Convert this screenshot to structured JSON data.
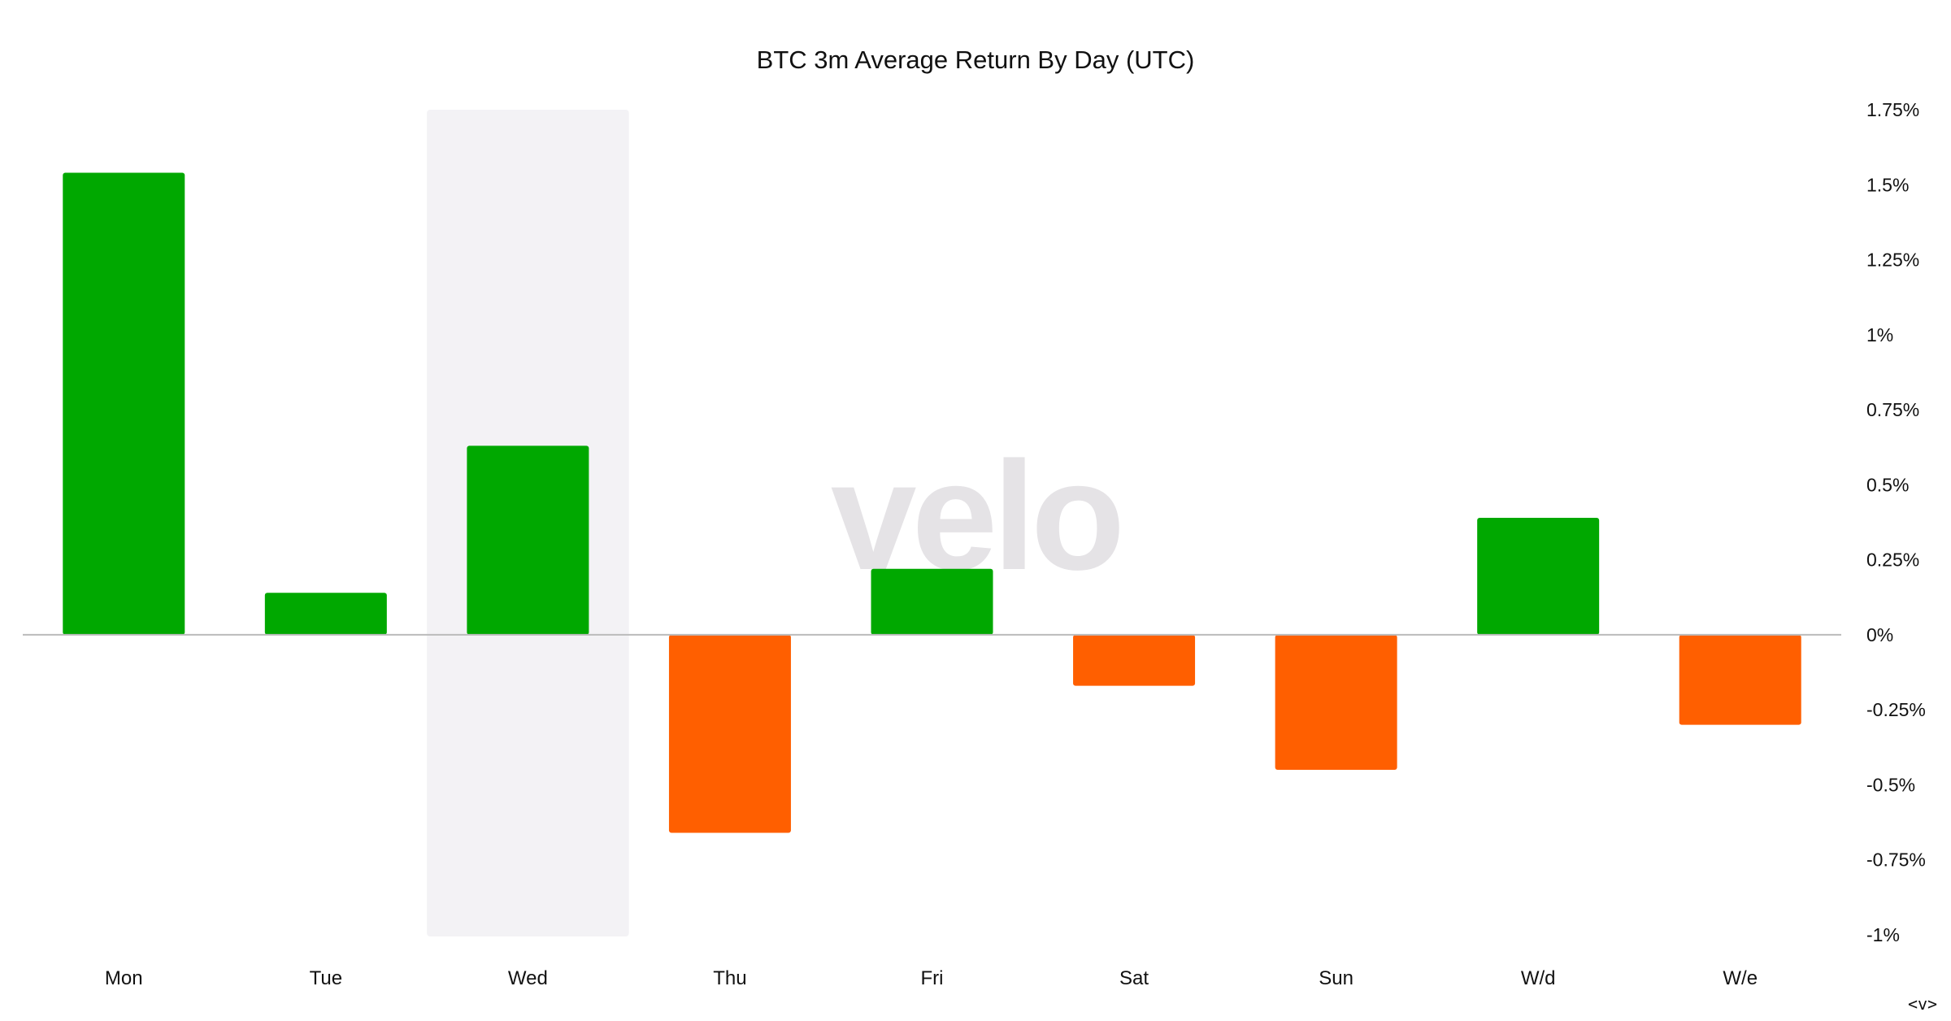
{
  "chart_data": {
    "type": "bar",
    "title": "BTC 3m Average Return By Day (UTC)",
    "xlabel": "",
    "ylabel": "",
    "categories": [
      "Mon",
      "Tue",
      "Wed",
      "Thu",
      "Fri",
      "Sat",
      "Sun",
      "W/d",
      "W/e"
    ],
    "values": [
      1.54,
      0.14,
      0.63,
      -0.66,
      0.22,
      -0.17,
      -0.45,
      0.39,
      -0.3
    ],
    "ylim": [
      -1,
      1.75
    ],
    "yticks": [
      1.75,
      1.5,
      1.25,
      1,
      0.75,
      0.5,
      0.25,
      0,
      -0.25,
      -0.5,
      -0.75,
      -1
    ],
    "ytick_labels": [
      "1.75%",
      "1.5%",
      "1.25%",
      "1%",
      "0.75%",
      "0.5%",
      "0.25%",
      "0%",
      "-0.25%",
      "-0.5%",
      "-0.75%",
      "-1%"
    ],
    "y_axis_position": "right",
    "grid": false,
    "legend": "none",
    "highlighted_category": "Wed"
  },
  "colors": {
    "positive": "#00a800",
    "negative": "#ff5f00",
    "highlight": "#f3f2f5",
    "baseline": "#bbbbbb",
    "text": "#111111",
    "watermark": "#e5e3e6"
  },
  "watermark": "velo",
  "nav_control": "<v>"
}
